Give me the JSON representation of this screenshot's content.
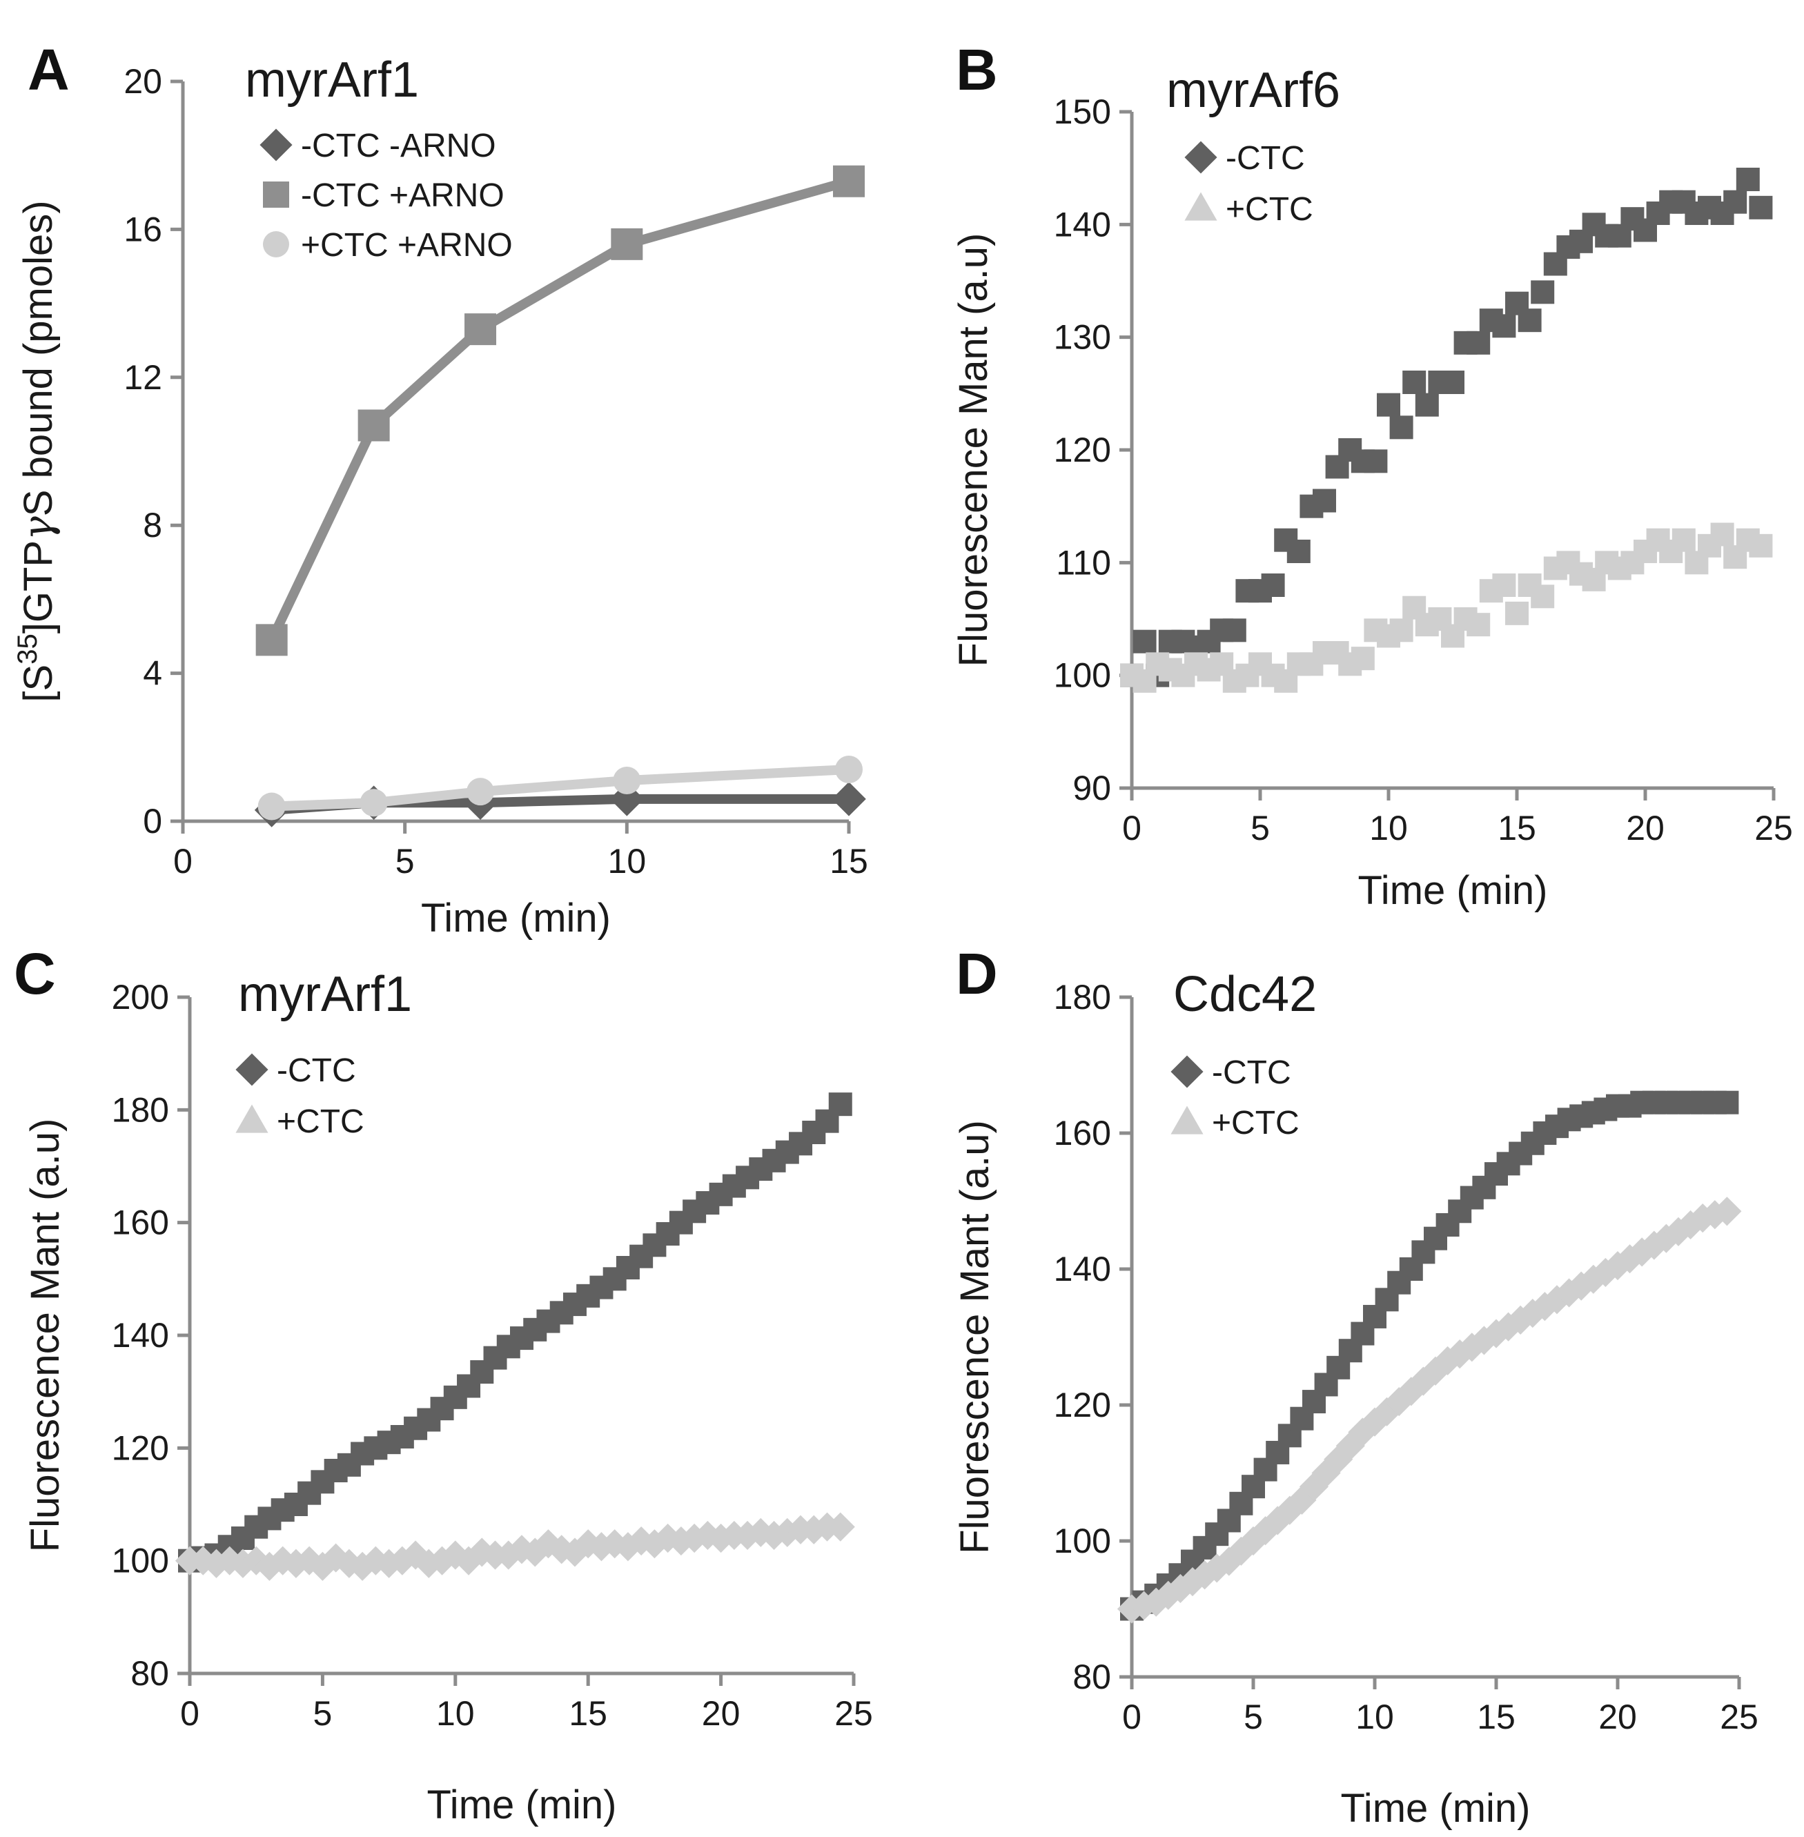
{
  "chart_data": [
    {
      "type": "line",
      "panel": "A",
      "title": "myrArf1",
      "xlabel": "Time (min)",
      "ylabel": "[S35]GTPγS bound (pmoles)",
      "ylabel_parts": {
        "pre": "[S",
        "sup": "35",
        "post": "]GTP",
        "greek": "γ",
        "end": "S bound (pmoles)"
      },
      "xlim": [
        0,
        15
      ],
      "ylim": [
        0,
        20
      ],
      "xticks": [
        "0",
        "5",
        "10",
        "15"
      ],
      "yticks": [
        "0",
        "4",
        "8",
        "12",
        "16",
        "20"
      ],
      "legend_position": "top-left",
      "series": [
        {
          "name": "-CTC  -ARNO",
          "marker": "diamond",
          "color": "#606060",
          "x": [
            2,
            4.3,
            6.7,
            10,
            15
          ],
          "y": [
            0.3,
            0.5,
            0.5,
            0.6,
            0.6
          ]
        },
        {
          "name": "-CTC  +ARNO",
          "marker": "square",
          "color": "#8f8f8f",
          "x": [
            2,
            4.3,
            6.7,
            10,
            15
          ],
          "y": [
            4.9,
            10.7,
            13.3,
            15.6,
            17.3
          ]
        },
        {
          "name": "+CTC +ARNO",
          "marker": "circle",
          "color": "#cfcfcf",
          "x": [
            2,
            4.3,
            6.7,
            10,
            15
          ],
          "y": [
            0.4,
            0.5,
            0.8,
            1.1,
            1.4
          ]
        }
      ]
    },
    {
      "type": "scatter",
      "panel": "B",
      "title": "myrArf6",
      "xlabel": "Time (min)",
      "ylabel": "Fluorescence Mant (a.u)",
      "xlim": [
        0,
        25
      ],
      "ylim": [
        90,
        150
      ],
      "xticks": [
        "0",
        "5",
        "10",
        "15",
        "20",
        "25"
      ],
      "yticks": [
        "90",
        "100",
        "110",
        "120",
        "130",
        "140",
        "150"
      ],
      "legend_position": "top-left",
      "series": [
        {
          "name": "-CTC",
          "marker": "diamond",
          "plot_marker": "square",
          "color": "#606060",
          "x": [
            0,
            0.5,
            1,
            1.5,
            2,
            2.5,
            3,
            3.5,
            4,
            4.5,
            5,
            5.5,
            6,
            6.5,
            7,
            7.5,
            8,
            8.5,
            9,
            9.5,
            10,
            10.5,
            11,
            11.5,
            12,
            12.5,
            13,
            13.5,
            14,
            14.5,
            15,
            15.5,
            16,
            16.5,
            17,
            17.5,
            18,
            18.5,
            19,
            19.5,
            20,
            20.5,
            21,
            21.5,
            22,
            22.5,
            23,
            23.5,
            24,
            24.5
          ],
          "y": [
            100,
            103,
            100,
            103,
            103,
            102.5,
            103,
            104,
            104,
            107.5,
            107.5,
            108,
            112,
            111,
            115,
            115.5,
            118.5,
            120,
            119,
            119,
            124,
            122,
            126,
            124,
            126,
            126,
            129.5,
            129.5,
            131.5,
            131,
            133,
            131.5,
            134,
            136.5,
            138,
            138.5,
            140,
            139,
            139,
            140.5,
            139.5,
            141,
            142,
            142,
            141,
            141.5,
            141,
            142,
            144,
            141.5
          ]
        },
        {
          "name": "+CTC",
          "marker": "triangle",
          "plot_marker": "square",
          "color": "#cfcfcf",
          "x": [
            0,
            0.5,
            1,
            1.5,
            2,
            2.5,
            3,
            3.5,
            4,
            4.5,
            5,
            5.5,
            6,
            6.5,
            7,
            7.5,
            8,
            8.5,
            9,
            9.5,
            10,
            10.5,
            11,
            11.5,
            12,
            12.5,
            13,
            13.5,
            14,
            14.5,
            15,
            15.5,
            16,
            16.5,
            17,
            17.5,
            18,
            18.5,
            19,
            19.5,
            20,
            20.5,
            21,
            21.5,
            22,
            22.5,
            23,
            23.5,
            24,
            24.5
          ],
          "y": [
            100,
            99.5,
            101,
            100.5,
            100,
            101,
            100.5,
            101,
            99.5,
            100,
            101,
            100,
            99.5,
            101,
            101,
            102,
            102,
            101,
            101.5,
            104,
            103.5,
            104,
            106,
            104.5,
            105,
            103.5,
            105,
            104.5,
            107.5,
            108,
            105.5,
            108,
            107,
            109.5,
            110,
            109,
            108.5,
            110,
            109.5,
            110,
            111,
            112,
            111,
            112,
            110,
            111.5,
            112.5,
            110.5,
            112,
            111.5
          ]
        }
      ]
    },
    {
      "type": "scatter",
      "panel": "C",
      "title": "myrArf1",
      "xlabel": "Time (min)",
      "ylabel": "Fluorescence Mant (a.u)",
      "xlim": [
        0,
        25
      ],
      "ylim": [
        80,
        200
      ],
      "xticks": [
        "0",
        "5",
        "10",
        "15",
        "20",
        "25"
      ],
      "yticks": [
        "80",
        "100",
        "120",
        "140",
        "160",
        "180",
        "200"
      ],
      "legend_position": "top-left",
      "series": [
        {
          "name": "-CTC",
          "marker": "diamond",
          "plot_marker": "square",
          "color": "#606060",
          "x": [
            0,
            0.5,
            1,
            1.5,
            2,
            2.5,
            3,
            3.5,
            4,
            4.5,
            5,
            5.5,
            6,
            6.5,
            7,
            7.5,
            8,
            8.5,
            9,
            9.5,
            10,
            10.5,
            11,
            11.5,
            12,
            12.5,
            13,
            13.5,
            14,
            14.5,
            15,
            15.5,
            16,
            16.5,
            17,
            17.5,
            18,
            18.5,
            19,
            19.5,
            20,
            20.5,
            21,
            21.5,
            22,
            22.5,
            23,
            23.5,
            24,
            24.5
          ],
          "y": [
            100,
            100.5,
            101,
            102.5,
            104,
            106,
            107.5,
            109,
            110,
            112,
            114,
            116,
            117,
            119,
            120,
            121,
            122,
            123.5,
            125,
            127,
            129,
            131,
            133.5,
            136,
            138,
            139.5,
            141,
            142.5,
            144,
            145.5,
            147,
            148.5,
            150,
            152,
            154,
            156,
            158,
            160,
            162,
            163.5,
            165,
            166.5,
            168,
            169.5,
            171,
            172.5,
            174,
            176,
            178,
            181
          ]
        },
        {
          "name": "+CTC",
          "marker": "triangle",
          "plot_marker": "diamond",
          "color": "#cfcfcf",
          "x": [
            0,
            0.5,
            1,
            1.5,
            2,
            2.5,
            3,
            3.5,
            4,
            4.5,
            5,
            5.5,
            6,
            6.5,
            7,
            7.5,
            8,
            8.5,
            9,
            9.5,
            10,
            10.5,
            11,
            11.5,
            12,
            12.5,
            13,
            13.5,
            14,
            14.5,
            15,
            15.5,
            16,
            16.5,
            17,
            17.5,
            18,
            18.5,
            19,
            19.5,
            20,
            20.5,
            21,
            21.5,
            22,
            22.5,
            23,
            23.5,
            24,
            24.5
          ],
          "y": [
            100,
            100,
            99.5,
            100,
            99.5,
            100,
            99,
            100,
            99.5,
            100,
            99,
            100.5,
            99.5,
            99,
            100,
            99.5,
            100,
            101,
            99.5,
            100,
            101,
            100,
            101.5,
            101,
            101,
            102,
            101.5,
            103,
            102,
            101.5,
            103,
            102.5,
            103,
            102.5,
            103.5,
            103,
            104,
            103.5,
            104,
            104.5,
            104,
            104.5,
            104.5,
            105,
            104.5,
            105,
            105.5,
            105.5,
            106,
            106
          ]
        }
      ]
    },
    {
      "type": "scatter",
      "panel": "D",
      "title": "Cdc42",
      "xlabel": "Time (min)",
      "ylabel": "Fluorescence Mant (a.u)",
      "xlim": [
        0,
        25
      ],
      "ylim": [
        80,
        180
      ],
      "xticks": [
        "0",
        "5",
        "10",
        "15",
        "20",
        "25"
      ],
      "yticks": [
        "80",
        "100",
        "120",
        "140",
        "160",
        "180"
      ],
      "legend_position": "top-left",
      "series": [
        {
          "name": "-CTC",
          "marker": "diamond",
          "plot_marker": "square",
          "color": "#606060",
          "x": [
            0,
            0.5,
            1,
            1.5,
            2,
            2.5,
            3,
            3.5,
            4,
            4.5,
            5,
            5.5,
            6,
            6.5,
            7,
            7.5,
            8,
            8.5,
            9,
            9.5,
            10,
            10.5,
            11,
            11.5,
            12,
            12.5,
            13,
            13.5,
            14,
            14.5,
            15,
            15.5,
            16,
            16.5,
            17,
            17.5,
            18,
            18.5,
            19,
            19.5,
            20,
            20.5,
            21,
            21.5,
            22,
            22.5,
            23,
            23.5,
            24,
            24.5
          ],
          "y": [
            90,
            91,
            92,
            93.5,
            95,
            97,
            99,
            101,
            103,
            105.5,
            108,
            110.5,
            113,
            115.5,
            118,
            120.5,
            123,
            125.5,
            128,
            130.5,
            133,
            135.5,
            138,
            140,
            142.5,
            144.5,
            146.5,
            148.5,
            150.5,
            152,
            154,
            155.5,
            157,
            158.5,
            160,
            161,
            162,
            162.5,
            163,
            163.5,
            164,
            164,
            164.5,
            164.5,
            164.5,
            164.5,
            164.5,
            164.5,
            164.5,
            164.5
          ]
        },
        {
          "name": "+CTC",
          "marker": "triangle",
          "plot_marker": "diamond",
          "color": "#cfcfcf",
          "x": [
            0,
            0.5,
            1,
            1.5,
            2,
            2.5,
            3,
            3.5,
            4,
            4.5,
            5,
            5.5,
            6,
            6.5,
            7,
            7.5,
            8,
            8.5,
            9,
            9.5,
            10,
            10.5,
            11,
            11.5,
            12,
            12.5,
            13,
            13.5,
            14,
            14.5,
            15,
            15.5,
            16,
            16.5,
            17,
            17.5,
            18,
            18.5,
            19,
            19.5,
            20,
            20.5,
            21,
            21.5,
            22,
            22.5,
            23,
            23.5,
            24,
            24.5
          ],
          "y": [
            90,
            90.5,
            91,
            92,
            93,
            94,
            95,
            96,
            97,
            98.5,
            100,
            101.5,
            103,
            104.5,
            106,
            108,
            110,
            112,
            114,
            116,
            117.5,
            119,
            120.5,
            122,
            123.5,
            125,
            126.5,
            127.5,
            128.5,
            129.5,
            130.5,
            131.5,
            132.5,
            133.5,
            134.5,
            135.5,
            136.5,
            137.5,
            138.5,
            139.5,
            140.5,
            141.5,
            142.5,
            143.5,
            144.5,
            145.5,
            146.5,
            147.5,
            148,
            148.5
          ]
        }
      ]
    }
  ]
}
